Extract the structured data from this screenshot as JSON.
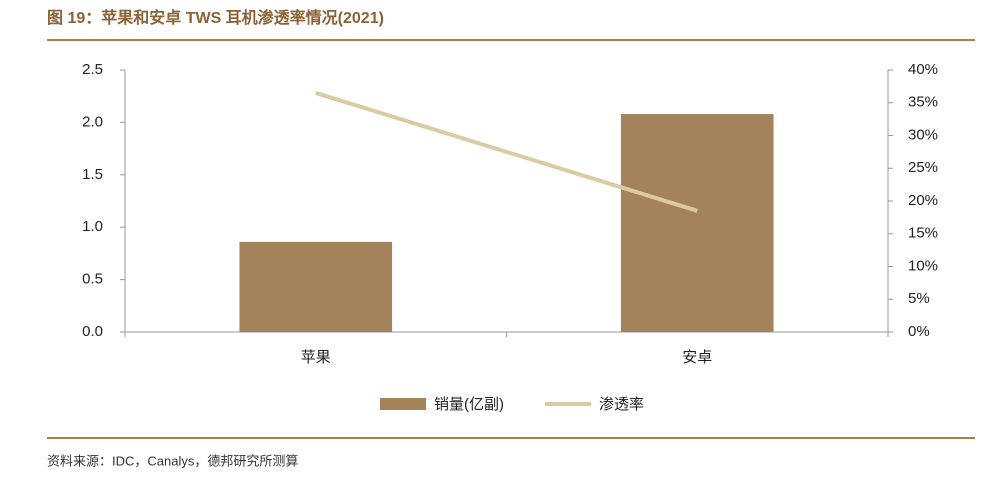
{
  "title": "图 19：苹果和安卓 TWS 耳机渗透率情况(2021)",
  "source": "资料来源：IDC，Canalys，德邦研究所测算",
  "chart_data": {
    "type": "bar",
    "categories": [
      "苹果",
      "安卓"
    ],
    "series": [
      {
        "name": "销量(亿副)",
        "type": "bar",
        "color": "#a5835a",
        "values": [
          0.86,
          2.08
        ]
      },
      {
        "name": "渗透率",
        "type": "line",
        "axis": "y2",
        "color": "#dccaa3",
        "values": [
          36.5,
          18.5
        ]
      }
    ],
    "ylim": [
      0,
      2.5
    ],
    "yticks": [
      {
        "value": 0,
        "label": "0.0"
      },
      0.5,
      {
        "value": 1,
        "label": "1.0"
      },
      1.5,
      {
        "value": 2,
        "label": "2.0"
      },
      2.5
    ],
    "y2lim": [
      0,
      40
    ],
    "y2ticks": [
      {
        "value": 0,
        "label": "0%"
      },
      {
        "value": 5,
        "label": "5%"
      },
      {
        "value": 10,
        "label": "10%"
      },
      {
        "value": 15,
        "label": "15%"
      },
      {
        "value": 20,
        "label": "20%"
      },
      {
        "value": 25,
        "label": "25%"
      },
      {
        "value": 30,
        "label": "30%"
      },
      {
        "value": 35,
        "label": "35%"
      },
      {
        "value": 40,
        "label": "40%"
      }
    ],
    "legend": "bottom"
  }
}
